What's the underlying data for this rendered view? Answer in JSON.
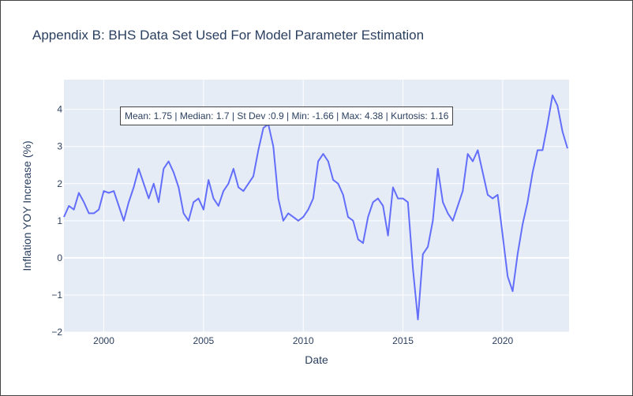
{
  "chart_data": {
    "type": "line",
    "title": "Appendix B: BHS Data Set Used For Model Parameter Estimation",
    "xlabel": "Date",
    "ylabel": "Inflation YOY Increase (%)",
    "xlim": [
      1998.0,
      2023.33
    ],
    "ylim": [
      -2,
      4.8
    ],
    "x_ticks": [
      2000,
      2005,
      2010,
      2015,
      2020
    ],
    "x_tick_labels": [
      "2000",
      "2005",
      "2010",
      "2015",
      "2020"
    ],
    "y_ticks": [
      -2,
      -1,
      0,
      1,
      2,
      3,
      4
    ],
    "y_tick_labels": [
      "−2",
      "−1",
      "0",
      "1",
      "2",
      "3",
      "4"
    ],
    "grid": true,
    "annotation": "Mean: 1.75 | Median: 1.7 | St Dev :0.9 | Min: -1.66 | Max: 4.38 | Kurtosis: 1.16",
    "colors": {
      "line": "#636efa",
      "plot_background": "#e5ecf6",
      "grid": "#ffffff",
      "text": "#2a3f5f"
    },
    "series": [
      {
        "x": [
          1998.0,
          1998.25,
          1998.5,
          1998.75,
          1999.0,
          1999.25,
          1999.5,
          1999.75,
          2000.0,
          2000.25,
          2000.5,
          2000.75,
          2001.0,
          2001.25,
          2001.5,
          2001.75,
          2002.0,
          2002.25,
          2002.5,
          2002.75,
          2003.0,
          2003.25,
          2003.5,
          2003.75,
          2004.0,
          2004.25,
          2004.5,
          2004.75,
          2005.0,
          2005.25,
          2005.5,
          2005.75,
          2006.0,
          2006.25,
          2006.5,
          2006.75,
          2007.0,
          2007.25,
          2007.5,
          2007.75,
          2008.0,
          2008.25,
          2008.5,
          2008.75,
          2009.0,
          2009.25,
          2009.5,
          2009.75,
          2010.0,
          2010.25,
          2010.5,
          2010.75,
          2011.0,
          2011.25,
          2011.5,
          2011.75,
          2012.0,
          2012.25,
          2012.5,
          2012.75,
          2013.0,
          2013.25,
          2013.5,
          2013.75,
          2014.0,
          2014.25,
          2014.5,
          2014.75,
          2015.0,
          2015.25,
          2015.5,
          2015.75,
          2016.0,
          2016.25,
          2016.5,
          2016.75,
          2017.0,
          2017.25,
          2017.5,
          2017.75,
          2018.0,
          2018.25,
          2018.5,
          2018.75,
          2019.0,
          2019.25,
          2019.5,
          2019.75,
          2020.0,
          2020.25,
          2020.5,
          2020.75,
          2021.0,
          2021.25,
          2021.5,
          2021.75,
          2022.0,
          2022.25,
          2022.5,
          2022.75,
          2023.0,
          2023.25
        ],
        "values": [
          1.1,
          1.4,
          1.3,
          1.75,
          1.5,
          1.2,
          1.2,
          1.3,
          1.8,
          1.75,
          1.8,
          1.4,
          1.0,
          1.5,
          1.9,
          2.4,
          2.0,
          1.6,
          2.0,
          1.5,
          2.4,
          2.6,
          2.3,
          1.9,
          1.2,
          1.0,
          1.5,
          1.6,
          1.3,
          2.1,
          1.6,
          1.4,
          1.8,
          2.0,
          2.4,
          1.9,
          1.8,
          2.0,
          2.2,
          2.9,
          3.5,
          3.6,
          3.0,
          1.6,
          1.0,
          1.2,
          1.1,
          1.0,
          1.1,
          1.3,
          1.6,
          2.6,
          2.8,
          2.6,
          2.1,
          2.0,
          1.7,
          1.1,
          1.0,
          0.5,
          0.4,
          1.1,
          1.5,
          1.6,
          1.4,
          0.6,
          1.9,
          1.6,
          1.6,
          1.5,
          -0.3,
          -1.66,
          0.1,
          0.3,
          1.0,
          2.4,
          1.5,
          1.2,
          1.0,
          1.4,
          1.8,
          2.8,
          2.6,
          2.9,
          2.3,
          1.7,
          1.6,
          1.7,
          0.6,
          -0.5,
          -0.9,
          0.1,
          0.9,
          1.5,
          2.3,
          2.9,
          2.9,
          3.6,
          4.38,
          4.1,
          3.4,
          2.95
        ]
      }
    ]
  }
}
